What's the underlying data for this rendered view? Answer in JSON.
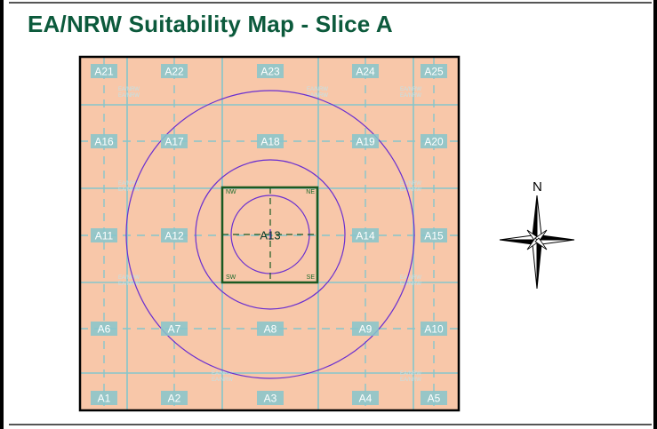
{
  "title": "EA/NRW Suitability Map - Slice A",
  "colors": {
    "cell_fill": "#f8c7a9",
    "grid_line": "#86c6cc",
    "circle": "#6a2fd0",
    "slice_box": "#1a5a22",
    "cell_label_bg": "#86c6cc",
    "cell_label_text": "#ffffff"
  },
  "grid": {
    "columns": 5,
    "rows": 5,
    "cells": [
      [
        "A21",
        "A22",
        "A23",
        "A24",
        "A25"
      ],
      [
        "A16",
        "A17",
        "A18",
        "A19",
        "A20"
      ],
      [
        "A11",
        "A12",
        "A13",
        "A14",
        "A15"
      ],
      [
        "A6",
        "A7",
        "A8",
        "A9",
        "A10"
      ],
      [
        "A1",
        "A2",
        "A3",
        "A4",
        "A5"
      ]
    ]
  },
  "slice_box": {
    "corners": {
      "nw": "NW",
      "ne": "NE",
      "sw": "SW",
      "se": "SE"
    }
  },
  "watermark": {
    "line1": "EA/NRW",
    "line2": "EA/NRW"
  },
  "circles_count": 3,
  "compass": {
    "label": "N",
    "icon": "compass-rose-icon"
  }
}
